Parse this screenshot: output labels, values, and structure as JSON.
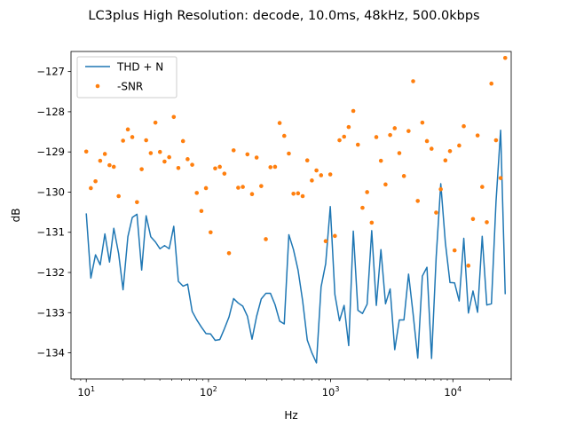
{
  "chart_data": {
    "type": "line",
    "title": "LC3plus High Resolution: decode, 10.0ms, 48kHz, 500.0kbps",
    "xlabel": "Hz",
    "ylabel": "dB",
    "xscale": "log",
    "xlim": [
      7.5,
      30000
    ],
    "ylim": [
      -134.65,
      -126.5
    ],
    "x_ticks": [
      {
        "value": 10,
        "base": "10",
        "exp": "1"
      },
      {
        "value": 100,
        "base": "10",
        "exp": "2"
      },
      {
        "value": 1000,
        "base": "10",
        "exp": "3"
      },
      {
        "value": 10000,
        "base": "10",
        "exp": "4"
      }
    ],
    "y_ticks": [
      {
        "value": -127,
        "label": "−127"
      },
      {
        "value": -128,
        "label": "−128"
      },
      {
        "value": -129,
        "label": "−129"
      },
      {
        "value": -130,
        "label": "−130"
      },
      {
        "value": -131,
        "label": "−131"
      },
      {
        "value": -132,
        "label": "−132"
      },
      {
        "value": -133,
        "label": "−133"
      },
      {
        "value": -134,
        "label": "−134"
      }
    ],
    "legend_position": "top-left",
    "series": [
      {
        "name": "THD + N",
        "style": "line",
        "color": "#1f77b4",
        "points": [
          [
            10.0,
            -130.53
          ],
          [
            10.9,
            -132.14
          ],
          [
            11.9,
            -131.56
          ],
          [
            13.0,
            -131.81
          ],
          [
            14.2,
            -131.04
          ],
          [
            15.5,
            -131.74
          ],
          [
            16.8,
            -130.9
          ],
          [
            18.4,
            -131.53
          ],
          [
            20.0,
            -132.43
          ],
          [
            21.9,
            -131.11
          ],
          [
            23.8,
            -130.63
          ],
          [
            26.0,
            -130.55
          ],
          [
            28.4,
            -131.94
          ],
          [
            30.9,
            -130.59
          ],
          [
            33.7,
            -131.11
          ],
          [
            36.8,
            -131.24
          ],
          [
            40.1,
            -131.41
          ],
          [
            43.7,
            -131.33
          ],
          [
            47.7,
            -131.41
          ],
          [
            52.0,
            -130.85
          ],
          [
            56.7,
            -132.22
          ],
          [
            61.9,
            -132.34
          ],
          [
            67.5,
            -132.29
          ],
          [
            73.6,
            -132.97
          ],
          [
            80.2,
            -133.18
          ],
          [
            87.5,
            -133.36
          ],
          [
            95.4,
            -133.52
          ],
          [
            104.1,
            -133.53
          ],
          [
            113.5,
            -133.69
          ],
          [
            123.8,
            -133.67
          ],
          [
            135.0,
            -133.4
          ],
          [
            147.2,
            -133.11
          ],
          [
            160.6,
            -132.65
          ],
          [
            175.1,
            -132.76
          ],
          [
            191.0,
            -132.84
          ],
          [
            208.3,
            -133.09
          ],
          [
            227.2,
            -133.66
          ],
          [
            247.7,
            -133.09
          ],
          [
            270.2,
            -132.66
          ],
          [
            294.7,
            -132.52
          ],
          [
            321.4,
            -132.52
          ],
          [
            350.5,
            -132.8
          ],
          [
            382.3,
            -133.21
          ],
          [
            416.9,
            -133.28
          ],
          [
            454.7,
            -131.06
          ],
          [
            495.9,
            -131.43
          ],
          [
            540.8,
            -131.94
          ],
          [
            589.8,
            -132.71
          ],
          [
            643.3,
            -133.68
          ],
          [
            701.6,
            -134.0
          ],
          [
            765.1,
            -134.25
          ],
          [
            834.5,
            -132.36
          ],
          [
            910.1,
            -131.78
          ],
          [
            992.5,
            -130.36
          ],
          [
            1082.5,
            -132.55
          ],
          [
            1180.6,
            -133.2
          ],
          [
            1287.6,
            -132.82
          ],
          [
            1404.2,
            -133.82
          ],
          [
            1531.4,
            -130.97
          ],
          [
            1670.2,
            -132.94
          ],
          [
            1821.5,
            -133.02
          ],
          [
            1986.6,
            -132.79
          ],
          [
            2166.6,
            -130.96
          ],
          [
            2362.9,
            -132.82
          ],
          [
            2577.0,
            -131.43
          ],
          [
            2810.5,
            -132.78
          ],
          [
            3065.2,
            -132.41
          ],
          [
            3342.9,
            -133.92
          ],
          [
            3645.8,
            -133.18
          ],
          [
            3976.2,
            -133.18
          ],
          [
            4336.5,
            -132.04
          ],
          [
            4729.4,
            -133.04
          ],
          [
            5157.9,
            -134.13
          ],
          [
            5625.3,
            -132.09
          ],
          [
            6135.0,
            -131.87
          ],
          [
            6690.9,
            -134.14
          ],
          [
            7297.2,
            -131.62
          ],
          [
            7958.4,
            -129.79
          ],
          [
            8679.5,
            -131.26
          ],
          [
            9466.0,
            -132.25
          ],
          [
            10323.7,
            -132.26
          ],
          [
            11259.2,
            -132.71
          ],
          [
            12279.4,
            -131.15
          ],
          [
            13392.0,
            -133.01
          ],
          [
            14605.5,
            -132.46
          ],
          [
            15928.9,
            -132.99
          ],
          [
            17372.3,
            -131.1
          ],
          [
            18946.4,
            -132.81
          ],
          [
            20663.2,
            -132.78
          ],
          [
            22535.5,
            -130.24
          ],
          [
            24577.5,
            -128.46
          ],
          [
            26804.5,
            -132.54
          ]
        ]
      },
      {
        "name": "-SNR",
        "style": "points",
        "color": "#ff7f0e",
        "points": [
          [
            10.0,
            -128.99
          ],
          [
            10.9,
            -129.9
          ],
          [
            11.9,
            -129.73
          ],
          [
            13.0,
            -129.22
          ],
          [
            14.2,
            -129.05
          ],
          [
            15.5,
            -129.33
          ],
          [
            16.8,
            -129.37
          ],
          [
            18.4,
            -130.1
          ],
          [
            20.0,
            -128.72
          ],
          [
            21.9,
            -128.44
          ],
          [
            23.8,
            -128.63
          ],
          [
            26.0,
            -130.25
          ],
          [
            28.4,
            -129.43
          ],
          [
            30.9,
            -128.71
          ],
          [
            33.7,
            -129.03
          ],
          [
            36.8,
            -128.27
          ],
          [
            40.1,
            -129.0
          ],
          [
            43.7,
            -129.24
          ],
          [
            47.7,
            -129.13
          ],
          [
            52.0,
            -128.13
          ],
          [
            56.7,
            -129.4
          ],
          [
            61.9,
            -128.73
          ],
          [
            67.5,
            -129.18
          ],
          [
            73.6,
            -129.32
          ],
          [
            80.2,
            -130.02
          ],
          [
            87.5,
            -130.47
          ],
          [
            95.4,
            -129.9
          ],
          [
            104.1,
            -131.0
          ],
          [
            113.5,
            -129.41
          ],
          [
            123.8,
            -129.37
          ],
          [
            135.0,
            -129.54
          ],
          [
            147.2,
            -131.52
          ],
          [
            160.6,
            -128.96
          ],
          [
            175.1,
            -129.89
          ],
          [
            191.0,
            -129.87
          ],
          [
            208.3,
            -129.06
          ],
          [
            227.2,
            -130.05
          ],
          [
            247.7,
            -129.14
          ],
          [
            270.2,
            -129.85
          ],
          [
            294.7,
            -131.17
          ],
          [
            321.4,
            -129.38
          ],
          [
            350.5,
            -129.37
          ],
          [
            382.3,
            -128.28
          ],
          [
            416.9,
            -128.6
          ],
          [
            454.7,
            -129.04
          ],
          [
            495.9,
            -130.04
          ],
          [
            540.8,
            -130.03
          ],
          [
            589.8,
            -130.1
          ],
          [
            643.3,
            -129.21
          ],
          [
            701.6,
            -129.71
          ],
          [
            765.1,
            -129.46
          ],
          [
            834.5,
            -129.58
          ],
          [
            910.1,
            -131.22
          ],
          [
            992.5,
            -129.56
          ],
          [
            1082.5,
            -131.09
          ],
          [
            1180.6,
            -128.71
          ],
          [
            1287.6,
            -128.62
          ],
          [
            1404.2,
            -128.38
          ],
          [
            1531.4,
            -127.98
          ],
          [
            1670.2,
            -128.82
          ],
          [
            1821.5,
            -130.39
          ],
          [
            1986.6,
            -130.0
          ],
          [
            2166.6,
            -130.76
          ],
          [
            2362.9,
            -128.63
          ],
          [
            2577.0,
            -129.22
          ],
          [
            2810.5,
            -129.81
          ],
          [
            3065.2,
            -128.58
          ],
          [
            3342.9,
            -128.41
          ],
          [
            3645.8,
            -129.03
          ],
          [
            3976.2,
            -129.6
          ],
          [
            4336.5,
            -128.48
          ],
          [
            4729.4,
            -127.24
          ],
          [
            5157.9,
            -130.22
          ],
          [
            5625.3,
            -128.27
          ],
          [
            6135.0,
            -128.73
          ],
          [
            6690.9,
            -128.92
          ],
          [
            7297.2,
            -130.51
          ],
          [
            7958.4,
            -129.93
          ],
          [
            8679.5,
            -129.21
          ],
          [
            9466.0,
            -128.98
          ],
          [
            10323.7,
            -131.45
          ],
          [
            11259.2,
            -128.84
          ],
          [
            12279.4,
            -128.36
          ],
          [
            13392.0,
            -131.83
          ],
          [
            14605.5,
            -130.67
          ],
          [
            15928.9,
            -128.59
          ],
          [
            17372.3,
            -129.87
          ],
          [
            18946.4,
            -130.75
          ],
          [
            20663.2,
            -127.3
          ],
          [
            22535.5,
            -128.71
          ],
          [
            24577.5,
            -129.65
          ],
          [
            26804.5,
            -126.66
          ]
        ]
      }
    ]
  }
}
